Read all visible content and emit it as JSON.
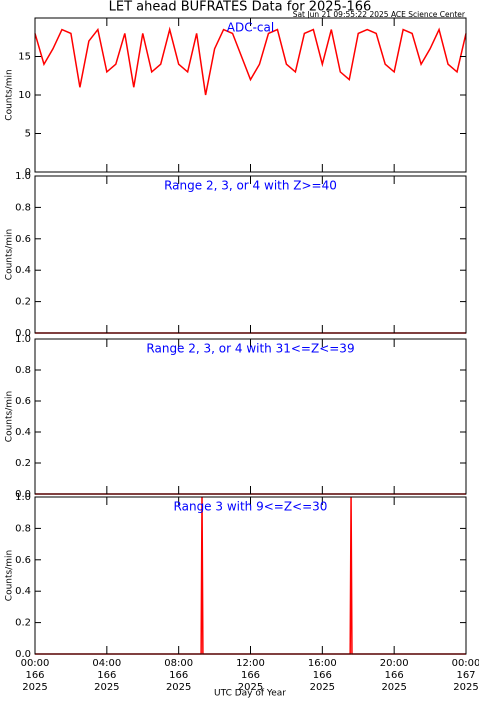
{
  "title": "LET ahead BUFRATES Data for 2025-166",
  "subtitle": "Sat Jun 21 09:55:22 2025 ACE Science Center",
  "xlabel": "UTC Day of Year",
  "chart_data": [
    {
      "type": "line",
      "annotation": "ADC-cal",
      "ylabel": "Counts/min",
      "xlim": [
        0,
        24
      ],
      "xticks": [
        0,
        4,
        8,
        12,
        16,
        20,
        24
      ],
      "ylim": [
        0,
        20
      ],
      "yticks": [
        0,
        5,
        10,
        15
      ],
      "x": [
        0,
        0.5,
        1,
        1.5,
        2,
        2.5,
        3,
        3.5,
        4,
        4.5,
        5,
        5.5,
        6,
        6.5,
        7,
        7.5,
        8,
        8.5,
        9,
        9.5,
        10,
        10.5,
        11,
        11.5,
        12,
        12.5,
        13,
        13.5,
        14,
        14.5,
        15,
        15.5,
        16,
        16.5,
        17,
        17.5,
        18,
        18.5,
        19,
        19.5,
        20,
        20.5,
        21,
        21.5,
        22,
        22.5,
        23,
        23.5,
        24
      ],
      "series": [
        {
          "color": "#ff0000",
          "values": [
            18,
            14,
            16,
            18.5,
            18,
            11,
            17,
            18.5,
            13,
            14,
            18,
            11,
            18,
            13,
            14,
            18.5,
            14,
            13,
            18,
            10,
            16,
            18.5,
            18,
            15,
            12,
            14,
            18,
            18.5,
            14,
            13,
            18,
            18.5,
            14,
            18.5,
            13,
            12,
            18,
            18.5,
            18,
            14,
            13,
            18.5,
            18,
            14,
            16,
            18.5,
            14,
            13,
            18
          ]
        }
      ]
    },
    {
      "type": "line",
      "annotation": "Range 2, 3, or 4 with Z>=40",
      "ylabel": "Counts/min",
      "xlim": [
        0,
        24
      ],
      "xticks": [
        0,
        4,
        8,
        12,
        16,
        20,
        24
      ],
      "ylim": [
        0,
        1
      ],
      "yticks": [
        {
          "value": 0,
          "label": "0.0"
        },
        {
          "value": 0.2,
          "label": "0.2"
        },
        {
          "value": 0.4,
          "label": "0.4"
        },
        {
          "value": 0.6,
          "label": "0.6"
        },
        {
          "value": 0.8,
          "label": "0.8"
        },
        {
          "value": 1,
          "label": "1.0"
        }
      ],
      "x": [
        0,
        24
      ],
      "series": [
        {
          "color": "#ff0000",
          "values": [
            0,
            0
          ]
        }
      ]
    },
    {
      "type": "line",
      "annotation": "Range 2, 3, or 4 with 31<=Z<=39",
      "ylabel": "Counts/min",
      "xlim": [
        0,
        24
      ],
      "xticks": [
        0,
        4,
        8,
        12,
        16,
        20,
        24
      ],
      "ylim": [
        0,
        1
      ],
      "yticks": [
        {
          "value": 0,
          "label": "0.0"
        },
        {
          "value": 0.2,
          "label": "0.2"
        },
        {
          "value": 0.4,
          "label": "0.4"
        },
        {
          "value": 0.6,
          "label": "0.6"
        },
        {
          "value": 0.8,
          "label": "0.8"
        },
        {
          "value": 1,
          "label": "1.0"
        }
      ],
      "x": [
        0,
        24
      ],
      "series": [
        {
          "color": "#ff0000",
          "values": [
            0,
            0
          ]
        }
      ]
    },
    {
      "type": "line",
      "annotation": "Range 3 with 9<=Z<=30",
      "ylabel": "Counts/min",
      "xlim": [
        0,
        24
      ],
      "xticks": [
        {
          "value": 0,
          "label": [
            "00:00",
            "166",
            "2025"
          ]
        },
        {
          "value": 4,
          "label": [
            "04:00",
            "166",
            "2025"
          ]
        },
        {
          "value": 8,
          "label": [
            "08:00",
            "166",
            "2025"
          ]
        },
        {
          "value": 12,
          "label": [
            "12:00",
            "166",
            "2025"
          ]
        },
        {
          "value": 16,
          "label": [
            "16:00",
            "166",
            "2025"
          ]
        },
        {
          "value": 20,
          "label": [
            "20:00",
            "166",
            "2025"
          ]
        },
        {
          "value": 24,
          "label": [
            "00:00",
            "167",
            "2025"
          ]
        }
      ],
      "ylim": [
        0,
        1
      ],
      "yticks": [
        {
          "value": 0,
          "label": "0.0"
        },
        {
          "value": 0.2,
          "label": "0.2"
        },
        {
          "value": 0.4,
          "label": "0.4"
        },
        {
          "value": 0.6,
          "label": "0.6"
        },
        {
          "value": 0.8,
          "label": "0.8"
        },
        {
          "value": 1,
          "label": "1.0"
        }
      ],
      "x": [
        0,
        9.25,
        9.3,
        9.35,
        17.55,
        17.6,
        17.65,
        24
      ],
      "series": [
        {
          "color": "#ff0000",
          "values": [
            0,
            0,
            1,
            0,
            0,
            1,
            0,
            0
          ]
        }
      ]
    }
  ]
}
